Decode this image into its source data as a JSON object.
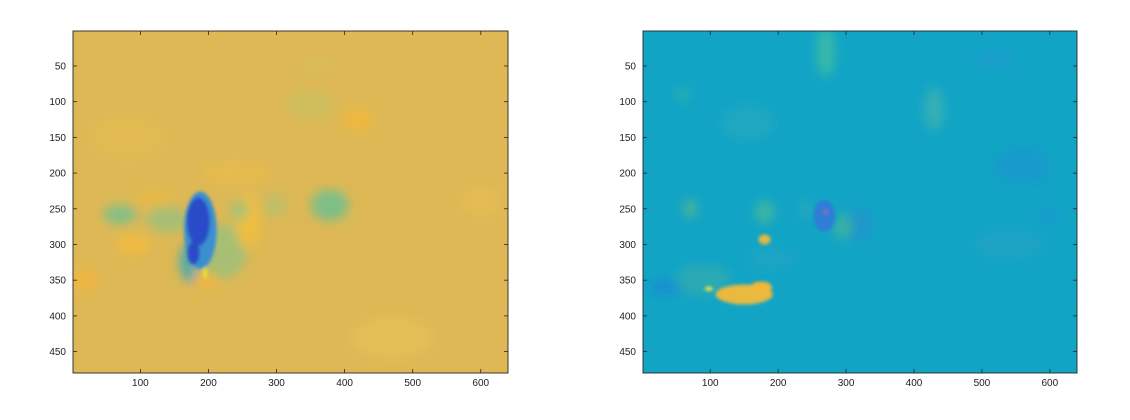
{
  "chart_data": [
    {
      "type": "heatmap",
      "name": "left-panel",
      "title": "",
      "xlabel": "",
      "ylabel": "",
      "xlim": [
        1,
        640
      ],
      "ylim": [
        480,
        1
      ],
      "x_ticks": [
        100,
        200,
        300,
        400,
        500,
        600
      ],
      "y_ticks": [
        50,
        100,
        150,
        200,
        250,
        300,
        350,
        400,
        450
      ],
      "x_tick_labels": [
        "100",
        "200",
        "300",
        "400",
        "500",
        "600"
      ],
      "y_tick_labels": [
        "50",
        "100",
        "150",
        "200",
        "250",
        "300",
        "350",
        "400",
        "450"
      ],
      "background_color": "#DDB855",
      "blobs": [
        {
          "x": 420,
          "y": 125,
          "rx": 22,
          "ry": 16,
          "color": "#F2B73A"
        },
        {
          "x": 350,
          "y": 105,
          "rx": 35,
          "ry": 20,
          "color": "#CBBF5E"
        },
        {
          "x": 360,
          "y": 50,
          "rx": 30,
          "ry": 14,
          "color": "#D9BC57"
        },
        {
          "x": 240,
          "y": 200,
          "rx": 50,
          "ry": 16,
          "color": "#E7BB4D"
        },
        {
          "x": 120,
          "y": 235,
          "rx": 28,
          "ry": 12,
          "color": "#E8BA45"
        },
        {
          "x": 70,
          "y": 258,
          "rx": 25,
          "ry": 14,
          "color": "#78C08B"
        },
        {
          "x": 140,
          "y": 265,
          "rx": 32,
          "ry": 18,
          "color": "#9EC07A"
        },
        {
          "x": 175,
          "y": 325,
          "rx": 18,
          "ry": 28,
          "color": "#3FA8B5"
        },
        {
          "x": 198,
          "y": 345,
          "rx": 18,
          "ry": 18,
          "color": "#F4B53A"
        },
        {
          "x": 222,
          "y": 310,
          "rx": 35,
          "ry": 38,
          "color": "#9EC07A"
        },
        {
          "x": 258,
          "y": 268,
          "rx": 18,
          "ry": 40,
          "color": "#F1BE3C"
        },
        {
          "x": 245,
          "y": 252,
          "rx": 14,
          "ry": 14,
          "color": "#9FC37D"
        },
        {
          "x": 298,
          "y": 245,
          "rx": 18,
          "ry": 16,
          "color": "#B8C06A"
        },
        {
          "x": 378,
          "y": 245,
          "rx": 28,
          "ry": 22,
          "color": "#6FBF8E"
        },
        {
          "x": 18,
          "y": 350,
          "rx": 22,
          "ry": 16,
          "color": "#F0B53F"
        },
        {
          "x": 90,
          "y": 300,
          "rx": 25,
          "ry": 14,
          "color": "#F3BC3C"
        },
        {
          "x": 600,
          "y": 240,
          "rx": 30,
          "ry": 20,
          "color": "#E4BD52"
        },
        {
          "x": 470,
          "y": 430,
          "rx": 60,
          "ry": 30,
          "color": "#E4C055"
        },
        {
          "x": 80,
          "y": 150,
          "rx": 55,
          "ry": 30,
          "color": "#E2BC52"
        }
      ],
      "features": [
        {
          "kind": "outer-halo",
          "color": "#3A8FD0",
          "x": 188,
          "y": 280,
          "rx": 24,
          "ry": 54
        },
        {
          "kind": "core",
          "color": "#2A4BC8",
          "x": 185,
          "y": 268,
          "rx": 17,
          "ry": 34
        },
        {
          "kind": "tail",
          "color": "#2A4BC8",
          "x": 178,
          "y": 312,
          "rx": 9,
          "ry": 16
        },
        {
          "kind": "streak",
          "color": "#E8E130",
          "x": 195,
          "y": 340,
          "rx": 3,
          "ry": 8
        }
      ]
    },
    {
      "type": "heatmap",
      "name": "right-panel",
      "title": "",
      "xlabel": "",
      "ylabel": "",
      "xlim": [
        1,
        640
      ],
      "ylim": [
        480,
        1
      ],
      "x_ticks": [
        100,
        200,
        300,
        400,
        500,
        600
      ],
      "y_ticks": [
        50,
        100,
        150,
        200,
        250,
        300,
        350,
        400,
        450
      ],
      "x_tick_labels": [
        "100",
        "200",
        "300",
        "400",
        "500",
        "600"
      ],
      "y_tick_labels": [
        "50",
        "100",
        "150",
        "200",
        "250",
        "300",
        "350",
        "400",
        "450"
      ],
      "background_color": "#12A4C5",
      "blobs": [
        {
          "x": 270,
          "y": 30,
          "rx": 14,
          "ry": 35,
          "color": "#3DBBA4"
        },
        {
          "x": 430,
          "y": 110,
          "rx": 15,
          "ry": 30,
          "color": "#38B2B3"
        },
        {
          "x": 60,
          "y": 90,
          "rx": 10,
          "ry": 10,
          "color": "#2CB2AE"
        },
        {
          "x": 155,
          "y": 130,
          "rx": 40,
          "ry": 25,
          "color": "#22A8BF"
        },
        {
          "x": 70,
          "y": 250,
          "rx": 10,
          "ry": 12,
          "color": "#55B88E"
        },
        {
          "x": 180,
          "y": 255,
          "rx": 14,
          "ry": 16,
          "color": "#44B89B"
        },
        {
          "x": 240,
          "y": 250,
          "rx": 10,
          "ry": 12,
          "color": "#2AA9B8"
        },
        {
          "x": 320,
          "y": 272,
          "rx": 20,
          "ry": 22,
          "color": "#1D95CB"
        },
        {
          "x": 295,
          "y": 275,
          "rx": 14,
          "ry": 18,
          "color": "#3FB39C"
        },
        {
          "x": 35,
          "y": 360,
          "rx": 24,
          "ry": 10,
          "color": "#198BD4"
        },
        {
          "x": 90,
          "y": 350,
          "rx": 40,
          "ry": 22,
          "color": "#2DAAB0"
        },
        {
          "x": 190,
          "y": 320,
          "rx": 35,
          "ry": 15,
          "color": "#20A3C4"
        },
        {
          "x": 560,
          "y": 190,
          "rx": 40,
          "ry": 25,
          "color": "#1A98CC"
        },
        {
          "x": 540,
          "y": 300,
          "rx": 50,
          "ry": 20,
          "color": "#20A2C4"
        },
        {
          "x": 600,
          "y": 260,
          "rx": 15,
          "ry": 10,
          "color": "#1598D0"
        },
        {
          "x": 520,
          "y": 40,
          "rx": 30,
          "ry": 12,
          "color": "#1B9CCB"
        }
      ],
      "features": [
        {
          "kind": "yellow-patch",
          "color": "#E9B940",
          "x": 150,
          "y": 370,
          "rx": 42,
          "ry": 14
        },
        {
          "kind": "yellow-patch-2",
          "color": "#F0B838",
          "x": 175,
          "y": 360,
          "rx": 16,
          "ry": 8
        },
        {
          "kind": "yellow-streak",
          "color": "#EDE63A",
          "x": 98,
          "y": 362,
          "rx": 6,
          "ry": 3
        },
        {
          "kind": "small-yellow",
          "color": "#E6B840",
          "x": 180,
          "y": 293,
          "rx": 9,
          "ry": 7
        },
        {
          "kind": "dark-blob",
          "color": "#2445C3",
          "x": 265,
          "y": 255,
          "rx": 9,
          "ry": 16
        },
        {
          "kind": "dark-blob-halo",
          "color": "#2F7DD7",
          "x": 268,
          "y": 260,
          "rx": 16,
          "ry": 22
        },
        {
          "kind": "red-dot",
          "color": "#D04A3A",
          "x": 270,
          "y": 255,
          "rx": 2,
          "ry": 2
        }
      ]
    }
  ]
}
